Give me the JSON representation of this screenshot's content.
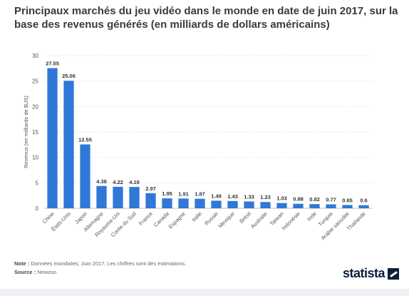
{
  "title": "Principaux marchés du jeu vidéo dans le monde en date de juin 2017, sur la base des revenus générés (en milliards de dollars américains)",
  "note_label": "Note :",
  "note_text": "Données mondiales; Juin 2017; Les chiffres sont des estimations.",
  "source_label": "Source :",
  "source_text": "Newzoo",
  "brand": "statista",
  "colors": {
    "bar": "#2f78d8",
    "grid": "#d9d9d9",
    "axis_text": "#555555"
  },
  "chart_data": {
    "type": "bar",
    "title": "Principaux marchés du jeu vidéo dans le monde en date de juin 2017, sur la base des revenus générés (en milliards de dollars américains)",
    "xlabel": "",
    "ylabel": "Revenus (en milliards de $US)",
    "ylim": [
      0,
      30
    ],
    "yticks": [
      0,
      5,
      10,
      15,
      20,
      25,
      30
    ],
    "grid": true,
    "categories": [
      "Chine",
      "États-Unis",
      "Japon",
      "Allemagne",
      "Royaume-Uni",
      "Corée du Sud",
      "France",
      "Canada",
      "Espagne",
      "Italie",
      "Russie",
      "Mexique",
      "Brésil",
      "Australie",
      "Taïwan",
      "Indonésie",
      "Inde",
      "Turquie",
      "Arabie saoudite",
      "Thaïlande"
    ],
    "values": [
      27.55,
      25.06,
      12.55,
      4.38,
      4.22,
      4.19,
      2.97,
      1.95,
      1.91,
      1.87,
      1.49,
      1.43,
      1.33,
      1.23,
      1.03,
      0.88,
      0.82,
      0.77,
      0.65,
      0.6
    ]
  }
}
